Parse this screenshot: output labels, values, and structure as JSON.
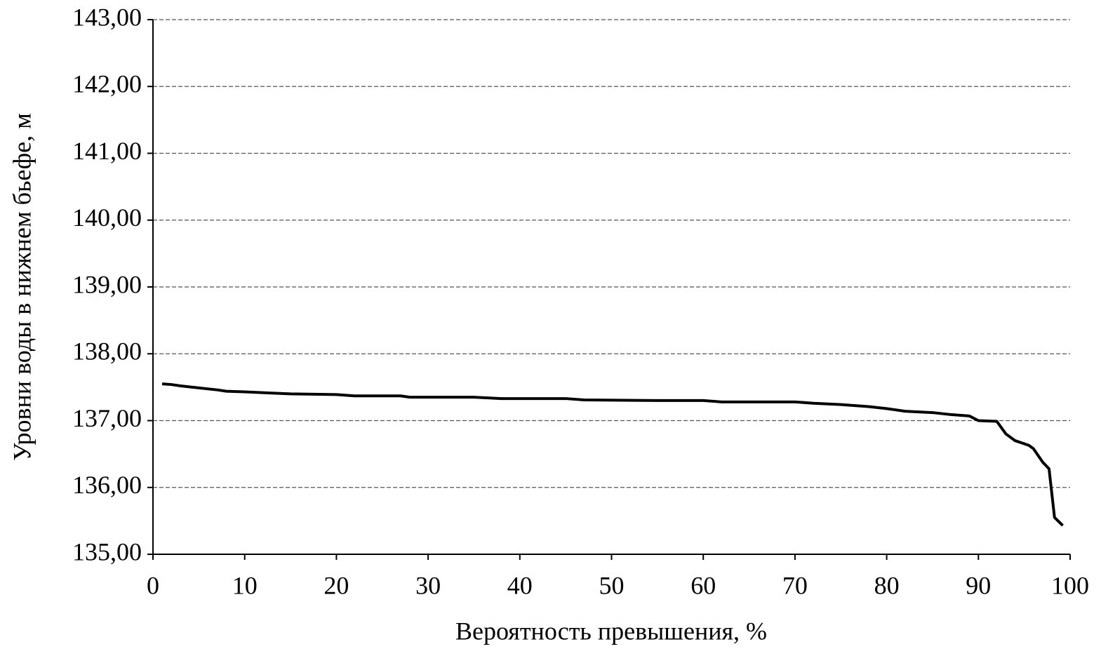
{
  "chart_data": {
    "type": "line",
    "x_label": "Вероятность превышения, %",
    "y_label": "Уровни воды в нижнем бьефе, м",
    "x": [
      1,
      2,
      3,
      5,
      7,
      8,
      10,
      15,
      20,
      22,
      27,
      28,
      35,
      38,
      45,
      47,
      55,
      60,
      62,
      70,
      72,
      75,
      78,
      80,
      82,
      85,
      87,
      89,
      90,
      92,
      93,
      94,
      95.5,
      96,
      97,
      97.7,
      98.3,
      99.2
    ],
    "values": [
      137.55,
      137.54,
      137.52,
      137.49,
      137.46,
      137.44,
      137.43,
      137.4,
      137.39,
      137.37,
      137.37,
      137.35,
      137.35,
      137.33,
      137.33,
      137.31,
      137.3,
      137.3,
      137.28,
      137.28,
      137.26,
      137.24,
      137.21,
      137.18,
      137.14,
      137.12,
      137.09,
      137.07,
      137.0,
      136.99,
      136.8,
      136.7,
      136.63,
      136.58,
      136.38,
      136.28,
      135.55,
      135.43
    ],
    "color": "#000000",
    "xlim": [
      0,
      100
    ],
    "xticks": [
      0,
      10,
      20,
      30,
      40,
      50,
      60,
      70,
      80,
      90,
      100
    ],
    "ylim": [
      135,
      143
    ],
    "yticks": [
      {
        "value": 135,
        "label": "135,00"
      },
      {
        "value": 136,
        "label": "136,00"
      },
      {
        "value": 137,
        "label": "137,00"
      },
      {
        "value": 138,
        "label": "138,00"
      },
      {
        "value": 139,
        "label": "139,00"
      },
      {
        "value": 140,
        "label": "140,00"
      },
      {
        "value": 141,
        "label": "141,00"
      },
      {
        "value": 142,
        "label": "142,00"
      },
      {
        "value": 143,
        "label": "143,00"
      }
    ],
    "grid": true
  }
}
